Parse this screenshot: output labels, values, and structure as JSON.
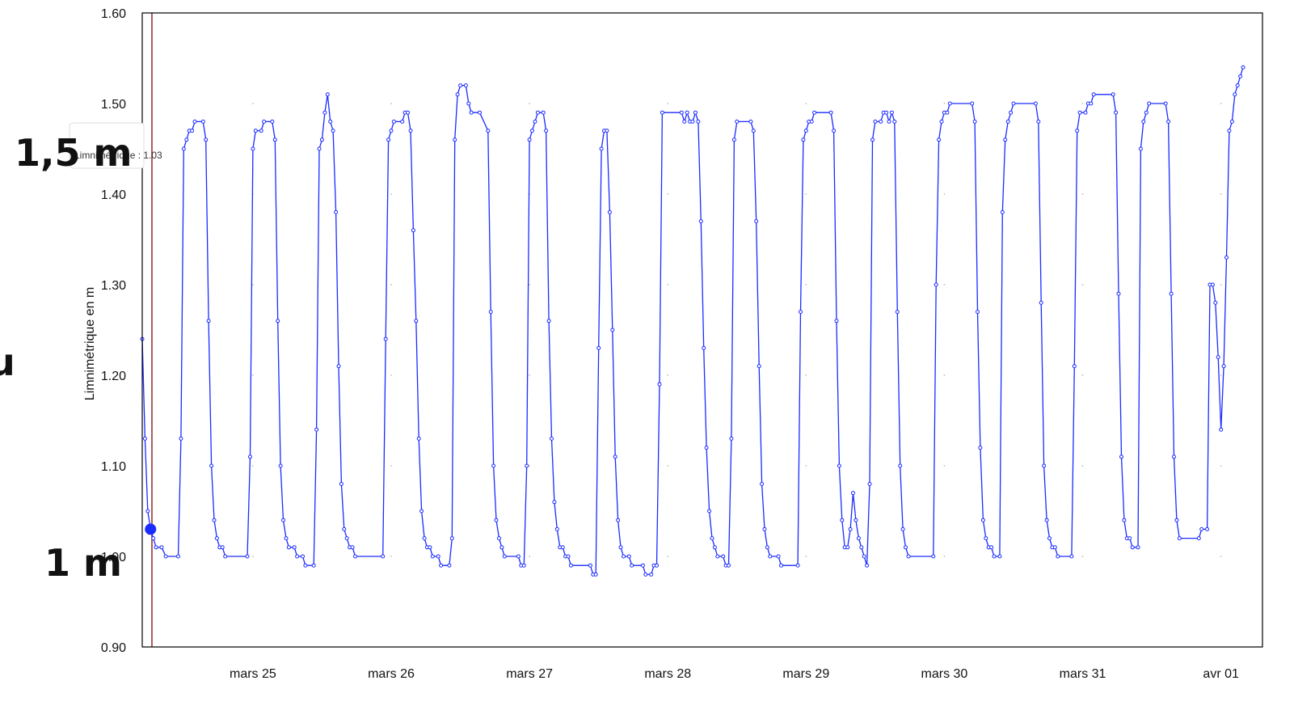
{
  "overlay": {
    "label_top": "1,5 m",
    "label_bottom": "1 m",
    "cut_left": "u",
    "tooltip": "Limnimétrique : 1.03"
  },
  "colors": {
    "series": "#1a2cff",
    "cursor": "#8b1a1a",
    "grid_dot": "#bbbbbb",
    "frame": "#000000"
  },
  "chart_data": {
    "type": "line",
    "title": "",
    "xlabel": "",
    "ylabel": "Limnimétrique en m",
    "ylim": [
      0.9,
      1.6
    ],
    "yticks": [
      "0.90",
      "1.00",
      "1.10",
      "1.20",
      "1.30",
      "1.40",
      "1.50",
      "1.60"
    ],
    "x_tick_labels": [
      "mars 25",
      "mars 26",
      "mars 27",
      "mars 28",
      "mars 29",
      "mars 30",
      "mars 31",
      "avr 01"
    ],
    "x_tick_days": [
      1,
      2,
      3,
      4,
      5,
      6,
      7,
      8
    ],
    "xlim_days": [
      0.2,
      8.3
    ],
    "cursor_day": 0.27,
    "highlight": {
      "day": 0.26,
      "value": 1.03
    },
    "series": [
      {
        "values": [
          [
            0.2,
            1.24
          ],
          [
            0.22,
            1.13
          ],
          [
            0.24,
            1.05
          ],
          [
            0.26,
            1.03
          ],
          [
            0.28,
            1.02
          ],
          [
            0.3,
            1.01
          ],
          [
            0.34,
            1.01
          ],
          [
            0.37,
            1.0
          ],
          [
            0.46,
            1.0
          ],
          [
            0.48,
            1.13
          ],
          [
            0.5,
            1.45
          ],
          [
            0.52,
            1.46
          ],
          [
            0.54,
            1.47
          ],
          [
            0.56,
            1.47
          ],
          [
            0.58,
            1.48
          ],
          [
            0.64,
            1.48
          ],
          [
            0.66,
            1.46
          ],
          [
            0.68,
            1.26
          ],
          [
            0.7,
            1.1
          ],
          [
            0.72,
            1.04
          ],
          [
            0.74,
            1.02
          ],
          [
            0.76,
            1.01
          ],
          [
            0.78,
            1.01
          ],
          [
            0.8,
            1.0
          ],
          [
            0.96,
            1.0
          ],
          [
            0.98,
            1.11
          ],
          [
            1.0,
            1.45
          ],
          [
            1.02,
            1.47
          ],
          [
            1.06,
            1.47
          ],
          [
            1.08,
            1.48
          ],
          [
            1.14,
            1.48
          ],
          [
            1.16,
            1.46
          ],
          [
            1.18,
            1.26
          ],
          [
            1.2,
            1.1
          ],
          [
            1.22,
            1.04
          ],
          [
            1.24,
            1.02
          ],
          [
            1.26,
            1.01
          ],
          [
            1.3,
            1.01
          ],
          [
            1.32,
            1.0
          ],
          [
            1.36,
            1.0
          ],
          [
            1.38,
            0.99
          ],
          [
            1.44,
            0.99
          ],
          [
            1.46,
            1.14
          ],
          [
            1.48,
            1.45
          ],
          [
            1.5,
            1.46
          ],
          [
            1.52,
            1.49
          ],
          [
            1.54,
            1.51
          ],
          [
            1.56,
            1.48
          ],
          [
            1.58,
            1.47
          ],
          [
            1.6,
            1.38
          ],
          [
            1.62,
            1.21
          ],
          [
            1.64,
            1.08
          ],
          [
            1.66,
            1.03
          ],
          [
            1.68,
            1.02
          ],
          [
            1.7,
            1.01
          ],
          [
            1.72,
            1.01
          ],
          [
            1.74,
            1.0
          ],
          [
            1.94,
            1.0
          ],
          [
            1.96,
            1.24
          ],
          [
            1.98,
            1.46
          ],
          [
            2.0,
            1.47
          ],
          [
            2.02,
            1.48
          ],
          [
            2.08,
            1.48
          ],
          [
            2.1,
            1.49
          ],
          [
            2.12,
            1.49
          ],
          [
            2.14,
            1.47
          ],
          [
            2.16,
            1.36
          ],
          [
            2.18,
            1.26
          ],
          [
            2.2,
            1.13
          ],
          [
            2.22,
            1.05
          ],
          [
            2.24,
            1.02
          ],
          [
            2.26,
            1.01
          ],
          [
            2.28,
            1.01
          ],
          [
            2.3,
            1.0
          ],
          [
            2.34,
            1.0
          ],
          [
            2.36,
            0.99
          ],
          [
            2.42,
            0.99
          ],
          [
            2.44,
            1.02
          ],
          [
            2.46,
            1.46
          ],
          [
            2.48,
            1.51
          ],
          [
            2.5,
            1.52
          ],
          [
            2.54,
            1.52
          ],
          [
            2.56,
            1.5
          ],
          [
            2.58,
            1.49
          ],
          [
            2.64,
            1.49
          ],
          [
            2.7,
            1.47
          ],
          [
            2.72,
            1.27
          ],
          [
            2.74,
            1.1
          ],
          [
            2.76,
            1.04
          ],
          [
            2.78,
            1.02
          ],
          [
            2.8,
            1.01
          ],
          [
            2.82,
            1.0
          ],
          [
            2.92,
            1.0
          ],
          [
            2.94,
            0.99
          ],
          [
            2.96,
            0.99
          ],
          [
            2.98,
            1.1
          ],
          [
            3.0,
            1.46
          ],
          [
            3.02,
            1.47
          ],
          [
            3.04,
            1.48
          ],
          [
            3.06,
            1.49
          ],
          [
            3.1,
            1.49
          ],
          [
            3.12,
            1.47
          ],
          [
            3.14,
            1.26
          ],
          [
            3.16,
            1.13
          ],
          [
            3.18,
            1.06
          ],
          [
            3.2,
            1.03
          ],
          [
            3.22,
            1.01
          ],
          [
            3.24,
            1.01
          ],
          [
            3.26,
            1.0
          ],
          [
            3.28,
            1.0
          ],
          [
            3.3,
            0.99
          ],
          [
            3.44,
            0.99
          ],
          [
            3.46,
            0.98
          ],
          [
            3.48,
            0.98
          ],
          [
            3.5,
            1.23
          ],
          [
            3.52,
            1.45
          ],
          [
            3.54,
            1.47
          ],
          [
            3.56,
            1.47
          ],
          [
            3.58,
            1.38
          ],
          [
            3.6,
            1.25
          ],
          [
            3.62,
            1.11
          ],
          [
            3.64,
            1.04
          ],
          [
            3.66,
            1.01
          ],
          [
            3.68,
            1.0
          ],
          [
            3.72,
            1.0
          ],
          [
            3.74,
            0.99
          ],
          [
            3.82,
            0.99
          ],
          [
            3.84,
            0.98
          ],
          [
            3.88,
            0.98
          ],
          [
            3.9,
            0.99
          ],
          [
            3.92,
            0.99
          ],
          [
            3.94,
            1.19
          ],
          [
            3.96,
            1.49
          ],
          [
            4.1,
            1.49
          ],
          [
            4.12,
            1.48
          ],
          [
            4.14,
            1.49
          ],
          [
            4.16,
            1.48
          ],
          [
            4.18,
            1.48
          ],
          [
            4.2,
            1.49
          ],
          [
            4.22,
            1.48
          ],
          [
            4.24,
            1.37
          ],
          [
            4.26,
            1.23
          ],
          [
            4.28,
            1.12
          ],
          [
            4.3,
            1.05
          ],
          [
            4.32,
            1.02
          ],
          [
            4.34,
            1.01
          ],
          [
            4.36,
            1.0
          ],
          [
            4.4,
            1.0
          ],
          [
            4.42,
            0.99
          ],
          [
            4.44,
            0.99
          ],
          [
            4.46,
            1.13
          ],
          [
            4.48,
            1.46
          ],
          [
            4.5,
            1.48
          ],
          [
            4.6,
            1.48
          ],
          [
            4.62,
            1.47
          ],
          [
            4.64,
            1.37
          ],
          [
            4.66,
            1.21
          ],
          [
            4.68,
            1.08
          ],
          [
            4.7,
            1.03
          ],
          [
            4.72,
            1.01
          ],
          [
            4.74,
            1.0
          ],
          [
            4.8,
            1.0
          ],
          [
            4.82,
            0.99
          ],
          [
            4.94,
            0.99
          ],
          [
            4.96,
            1.27
          ],
          [
            4.98,
            1.46
          ],
          [
            5.0,
            1.47
          ],
          [
            5.02,
            1.48
          ],
          [
            5.04,
            1.48
          ],
          [
            5.06,
            1.49
          ],
          [
            5.18,
            1.49
          ],
          [
            5.2,
            1.47
          ],
          [
            5.22,
            1.26
          ],
          [
            5.24,
            1.1
          ],
          [
            5.26,
            1.04
          ],
          [
            5.28,
            1.01
          ],
          [
            5.3,
            1.01
          ],
          [
            5.32,
            1.03
          ],
          [
            5.34,
            1.07
          ],
          [
            5.36,
            1.04
          ],
          [
            5.38,
            1.02
          ],
          [
            5.4,
            1.01
          ],
          [
            5.42,
            1.0
          ],
          [
            5.44,
            0.99
          ],
          [
            5.46,
            1.08
          ],
          [
            5.48,
            1.46
          ],
          [
            5.5,
            1.48
          ],
          [
            5.54,
            1.48
          ],
          [
            5.56,
            1.49
          ],
          [
            5.58,
            1.49
          ],
          [
            5.6,
            1.48
          ],
          [
            5.62,
            1.49
          ],
          [
            5.64,
            1.48
          ],
          [
            5.66,
            1.27
          ],
          [
            5.68,
            1.1
          ],
          [
            5.7,
            1.03
          ],
          [
            5.72,
            1.01
          ],
          [
            5.74,
            1.0
          ],
          [
            5.92,
            1.0
          ],
          [
            5.94,
            1.3
          ],
          [
            5.96,
            1.46
          ],
          [
            5.98,
            1.48
          ],
          [
            6.0,
            1.49
          ],
          [
            6.02,
            1.49
          ],
          [
            6.04,
            1.5
          ],
          [
            6.2,
            1.5
          ],
          [
            6.22,
            1.48
          ],
          [
            6.24,
            1.27
          ],
          [
            6.26,
            1.12
          ],
          [
            6.28,
            1.04
          ],
          [
            6.3,
            1.02
          ],
          [
            6.32,
            1.01
          ],
          [
            6.34,
            1.01
          ],
          [
            6.36,
            1.0
          ],
          [
            6.4,
            1.0
          ],
          [
            6.42,
            1.38
          ],
          [
            6.44,
            1.46
          ],
          [
            6.46,
            1.48
          ],
          [
            6.48,
            1.49
          ],
          [
            6.5,
            1.5
          ],
          [
            6.66,
            1.5
          ],
          [
            6.68,
            1.48
          ],
          [
            6.7,
            1.28
          ],
          [
            6.72,
            1.1
          ],
          [
            6.74,
            1.04
          ],
          [
            6.76,
            1.02
          ],
          [
            6.78,
            1.01
          ],
          [
            6.8,
            1.01
          ],
          [
            6.82,
            1.0
          ],
          [
            6.92,
            1.0
          ],
          [
            6.94,
            1.21
          ],
          [
            6.96,
            1.47
          ],
          [
            6.98,
            1.49
          ],
          [
            7.02,
            1.49
          ],
          [
            7.04,
            1.5
          ],
          [
            7.06,
            1.5
          ],
          [
            7.08,
            1.51
          ],
          [
            7.22,
            1.51
          ],
          [
            7.24,
            1.49
          ],
          [
            7.26,
            1.29
          ],
          [
            7.28,
            1.11
          ],
          [
            7.3,
            1.04
          ],
          [
            7.32,
            1.02
          ],
          [
            7.34,
            1.02
          ],
          [
            7.36,
            1.01
          ],
          [
            7.4,
            1.01
          ],
          [
            7.42,
            1.45
          ],
          [
            7.44,
            1.48
          ],
          [
            7.46,
            1.49
          ],
          [
            7.48,
            1.5
          ],
          [
            7.6,
            1.5
          ],
          [
            7.62,
            1.48
          ],
          [
            7.64,
            1.29
          ],
          [
            7.66,
            1.11
          ],
          [
            7.68,
            1.04
          ],
          [
            7.7,
            1.02
          ],
          [
            7.84,
            1.02
          ],
          [
            7.86,
            1.03
          ],
          [
            7.9,
            1.03
          ],
          [
            7.92,
            1.3
          ],
          [
            7.94,
            1.3
          ],
          [
            7.96,
            1.28
          ],
          [
            7.98,
            1.22
          ],
          [
            8.0,
            1.14
          ],
          [
            8.02,
            1.21
          ],
          [
            8.04,
            1.33
          ],
          [
            8.06,
            1.47
          ],
          [
            8.08,
            1.48
          ],
          [
            8.1,
            1.51
          ],
          [
            8.12,
            1.52
          ],
          [
            8.14,
            1.53
          ],
          [
            8.16,
            1.54
          ]
        ]
      }
    ]
  }
}
